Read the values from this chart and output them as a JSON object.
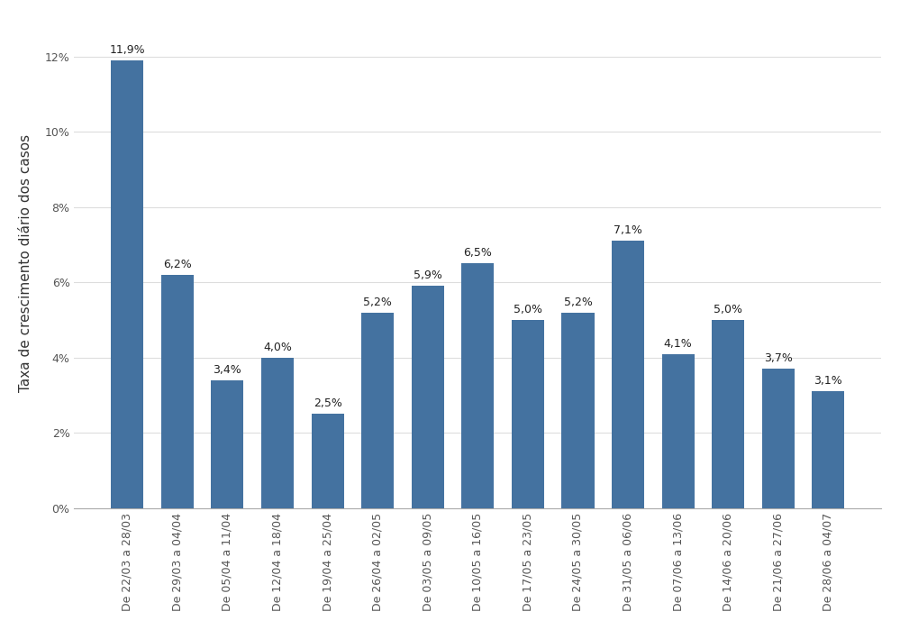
{
  "categories": [
    "De 22/03 a 28/03",
    "De 29/03 a 04/04",
    "De 05/04 a 11/04",
    "De 12/04 a 18/04",
    "De 19/04 a 25/04",
    "De 26/04 a 02/05",
    "De 03/05 a 09/05",
    "De 10/05 a 16/05",
    "De 17/05 a 23/05",
    "De 24/05 a 30/05",
    "De 31/05 a 06/06",
    "De 07/06 a 13/06",
    "De 14/06 a 20/06",
    "De 21/06 a 27/06",
    "De 28/06 a 04/07"
  ],
  "values": [
    11.9,
    6.2,
    3.4,
    4.0,
    2.5,
    5.2,
    5.9,
    6.5,
    5.0,
    5.2,
    7.1,
    4.1,
    5.0,
    3.7,
    3.1
  ],
  "labels": [
    "11,9%",
    "6,2%",
    "3,4%",
    "4,0%",
    "2,5%",
    "5,2%",
    "5,9%",
    "6,5%",
    "5,0%",
    "5,2%",
    "7,1%",
    "4,1%",
    "5,0%",
    "3,7%",
    "3,1%"
  ],
  "bar_color": "#4472a0",
  "ylabel": "Taxa de crescimento diário dos casos",
  "ylim": [
    0,
    13
  ],
  "yticks": [
    0,
    2,
    4,
    6,
    8,
    10,
    12
  ],
  "ytick_labels": [
    "0%",
    "2%",
    "4%",
    "6%",
    "8%",
    "10%",
    "12%"
  ],
  "background_color": "#ffffff",
  "grid_color": "#dddddd",
  "label_fontsize": 9.0,
  "ylabel_fontsize": 11,
  "tick_fontsize": 9.0,
  "bar_width": 0.65
}
